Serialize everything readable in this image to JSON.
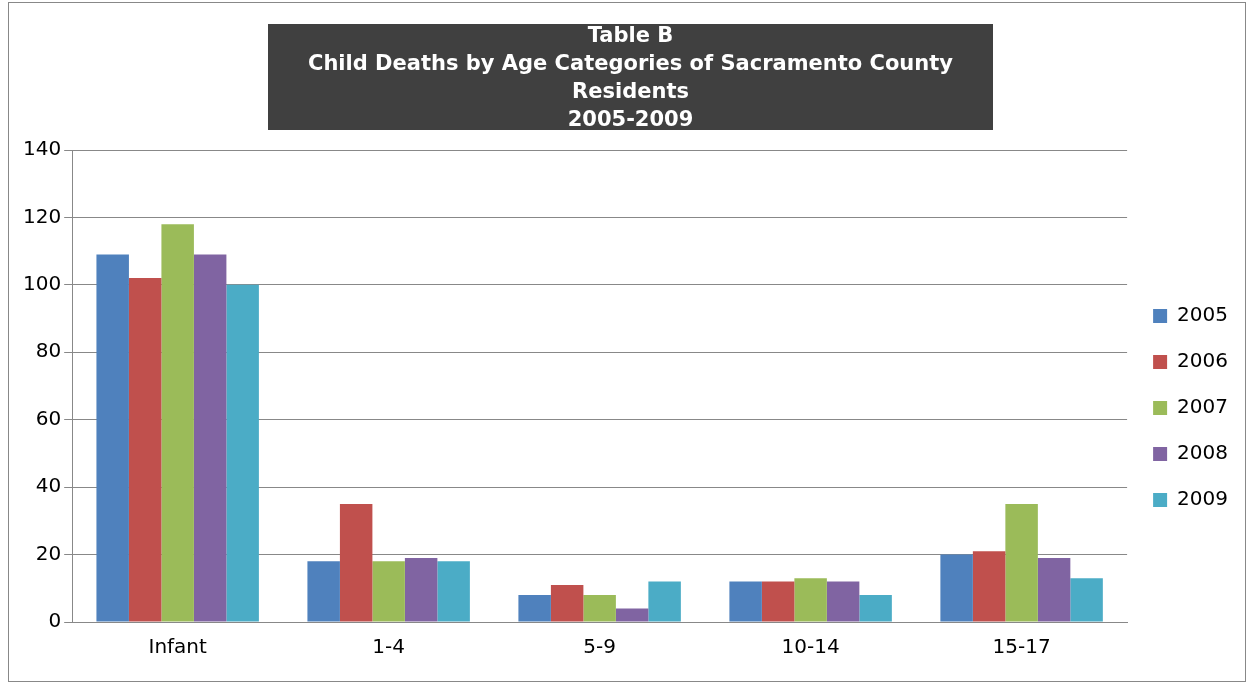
{
  "chart_data": {
    "type": "bar",
    "title": "Table B\nChild Deaths by Age Categories of Sacramento County Residents\n2005-2009",
    "categories": [
      "Infant",
      "1-4",
      "5-9",
      "10-14",
      "15-17"
    ],
    "series": [
      {
        "name": "2005",
        "color": "#4f81bd",
        "values": [
          109,
          18,
          8,
          12,
          20
        ]
      },
      {
        "name": "2006",
        "color": "#c0504d",
        "values": [
          102,
          35,
          11,
          12,
          21
        ]
      },
      {
        "name": "2007",
        "color": "#9bbb59",
        "values": [
          118,
          18,
          8,
          13,
          35
        ]
      },
      {
        "name": "2008",
        "color": "#8064a2",
        "values": [
          109,
          19,
          4,
          12,
          19
        ]
      },
      {
        "name": "2009",
        "color": "#4bacc6",
        "values": [
          100,
          18,
          12,
          8,
          13
        ]
      }
    ],
    "ylim": [
      0,
      140
    ],
    "yticks": [
      0,
      20,
      40,
      60,
      80,
      100,
      120,
      140
    ],
    "grid": "y",
    "legend": "right"
  }
}
